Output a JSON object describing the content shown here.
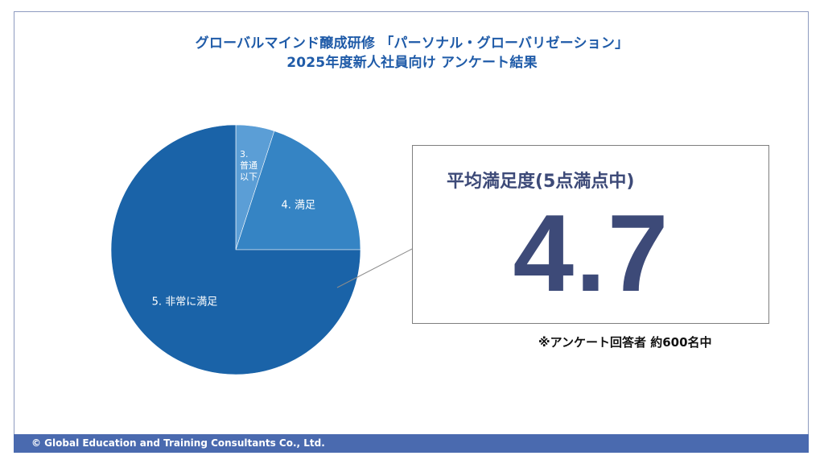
{
  "title": {
    "line1": "グローバルマインド醸成研修 「パーソナル・グローバリゼーション」",
    "line2": "2025年度新人社員向け アンケート結果"
  },
  "chart_data": {
    "type": "pie",
    "start_angle_deg": 0,
    "direction": "clockwise",
    "slices": [
      {
        "label": "3. 普通以下",
        "label_lines": [
          "3.",
          "普通",
          "以下"
        ],
        "value": 5,
        "color": "#5b9ed6"
      },
      {
        "label": "4. 満足",
        "label_lines": [
          "4. 満足"
        ],
        "value": 20,
        "color": "#3584c4"
      },
      {
        "label": "5. 非常に満足",
        "label_lines": [
          "5. 非常に満足"
        ],
        "value": 75,
        "color": "#1a63a8"
      }
    ]
  },
  "summary": {
    "heading": "平均満足度(5点満点中)",
    "value": "4.7"
  },
  "respondents": "※アンケート回答者 約600名中",
  "footer": "© Global Education and Training Consultants Co., Ltd."
}
